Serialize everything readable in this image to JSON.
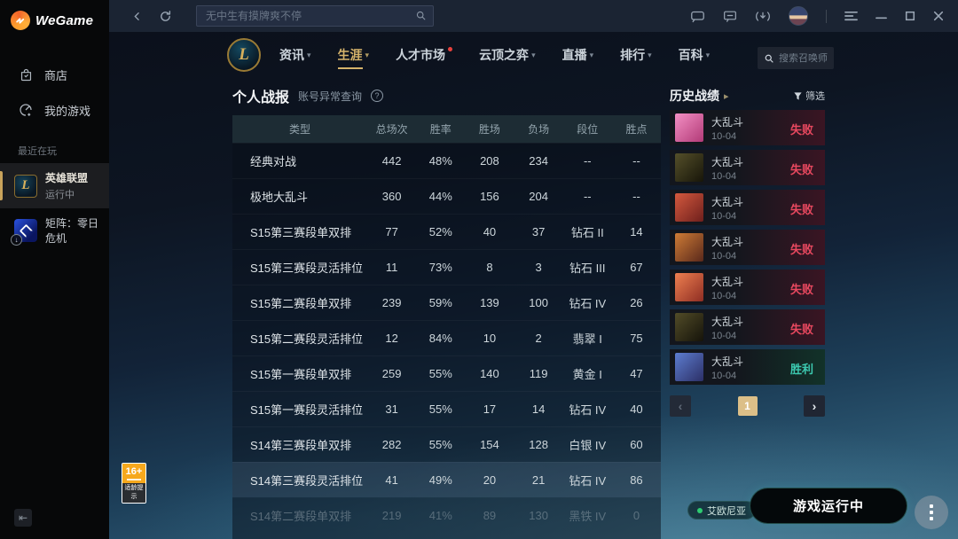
{
  "app": {
    "brand": "WeGame",
    "top_search_placeholder": "无中生有摸牌爽不停",
    "accent_gold": "#d5b36b",
    "loss_color": "#e8485f",
    "win_color": "#3cc9b0",
    "loss_bg": "linear-gradient(90deg,#13161d 42%,#3a1523 100%)",
    "win_bg": "linear-gradient(90deg,#13161d 42%,#123229 100%)"
  },
  "sidebar": {
    "store_label": "商店",
    "my_games_label": "我的游戏",
    "recent_label": "最近在玩",
    "recent_games": [
      {
        "key": "lol",
        "name": "英雄联盟",
        "status": "运行中",
        "running": true,
        "selected": true
      },
      {
        "key": "matrix",
        "name": "矩阵：零日危机",
        "status": "",
        "running": false,
        "selected": false
      }
    ]
  },
  "nav": {
    "tabs": [
      {
        "key": "news",
        "label": "资讯",
        "caret": true,
        "active": false,
        "dot": false
      },
      {
        "key": "career",
        "label": "生涯",
        "caret": true,
        "active": true,
        "dot": false
      },
      {
        "key": "market",
        "label": "人才市场",
        "caret": false,
        "active": false,
        "dot": true
      },
      {
        "key": "tft",
        "label": "云顶之弈",
        "caret": true,
        "active": false,
        "dot": false
      },
      {
        "key": "live",
        "label": "直播",
        "caret": true,
        "active": false,
        "dot": false
      },
      {
        "key": "ranking",
        "label": "排行",
        "caret": true,
        "active": false,
        "dot": false
      },
      {
        "key": "wiki",
        "label": "百科",
        "caret": true,
        "active": false,
        "dot": false
      }
    ],
    "summoner_search_placeholder": "搜索召唤师"
  },
  "report": {
    "title": "个人战报",
    "subtitle": "账号异常查询",
    "help_glyph": "?",
    "columns": [
      "类型",
      "总场次",
      "胜率",
      "胜场",
      "负场",
      "段位",
      "胜点"
    ],
    "rows": [
      {
        "cells": [
          "经典对战",
          "442",
          "48%",
          "208",
          "234",
          "--",
          "--"
        ],
        "highlight": false,
        "faded": false
      },
      {
        "cells": [
          "极地大乱斗",
          "360",
          "44%",
          "156",
          "204",
          "--",
          "--"
        ],
        "highlight": false,
        "faded": false
      },
      {
        "cells": [
          "S15第三赛段单双排",
          "77",
          "52%",
          "40",
          "37",
          "钻石 II",
          "14"
        ],
        "highlight": false,
        "faded": false
      },
      {
        "cells": [
          "S15第三赛段灵活排位",
          "11",
          "73%",
          "8",
          "3",
          "钻石 III",
          "67"
        ],
        "highlight": false,
        "faded": false
      },
      {
        "cells": [
          "S15第二赛段单双排",
          "239",
          "59%",
          "139",
          "100",
          "钻石 IV",
          "26"
        ],
        "highlight": false,
        "faded": false
      },
      {
        "cells": [
          "S15第二赛段灵活排位",
          "12",
          "84%",
          "10",
          "2",
          "翡翠 I",
          "75"
        ],
        "highlight": false,
        "faded": false
      },
      {
        "cells": [
          "S15第一赛段单双排",
          "259",
          "55%",
          "140",
          "119",
          "黄金 I",
          "47"
        ],
        "highlight": false,
        "faded": false
      },
      {
        "cells": [
          "S15第一赛段灵活排位",
          "31",
          "55%",
          "17",
          "14",
          "钻石 IV",
          "40"
        ],
        "highlight": false,
        "faded": false
      },
      {
        "cells": [
          "S14第三赛段单双排",
          "282",
          "55%",
          "154",
          "128",
          "白银 IV",
          "60"
        ],
        "highlight": false,
        "faded": false
      },
      {
        "cells": [
          "S14第三赛段灵活排位",
          "41",
          "49%",
          "20",
          "21",
          "钻石 IV",
          "86"
        ],
        "highlight": true,
        "faded": false
      },
      {
        "cells": [
          "S14第二赛段单双排",
          "219",
          "41%",
          "89",
          "130",
          "黑铁 IV",
          "0"
        ],
        "highlight": false,
        "faded": true
      }
    ]
  },
  "history": {
    "title": "历史战绩",
    "filter_label": "筛选",
    "matches": [
      {
        "mode": "大乱斗",
        "date": "10-04",
        "result": "失败",
        "win": false,
        "avatar": [
          "#f390c4",
          "#b23a77"
        ]
      },
      {
        "mode": "大乱斗",
        "date": "10-04",
        "result": "失败",
        "win": false,
        "avatar": [
          "#55502a",
          "#171509"
        ]
      },
      {
        "mode": "大乱斗",
        "date": "10-04",
        "result": "失败",
        "win": false,
        "avatar": [
          "#d4593e",
          "#6e1f1c"
        ]
      },
      {
        "mode": "大乱斗",
        "date": "10-04",
        "result": "失败",
        "win": false,
        "avatar": [
          "#cf7c36",
          "#59281b"
        ]
      },
      {
        "mode": "大乱斗",
        "date": "10-04",
        "result": "失败",
        "win": false,
        "avatar": [
          "#ef8050",
          "#8e2d23"
        ]
      },
      {
        "mode": "大乱斗",
        "date": "10-04",
        "result": "失败",
        "win": false,
        "avatar": [
          "#524c28",
          "#15130a"
        ]
      },
      {
        "mode": "大乱斗",
        "date": "10-04",
        "result": "胜利",
        "win": true,
        "avatar": [
          "#5d7dd0",
          "#2c2f66"
        ]
      }
    ],
    "page": "1",
    "prev_glyph": "‹",
    "next_glyph": "›"
  },
  "footer": {
    "server": "艾欧尼亚",
    "game_status": "游戏运行中"
  },
  "age_badge": {
    "rating": "16+",
    "caption": "适龄提示"
  }
}
